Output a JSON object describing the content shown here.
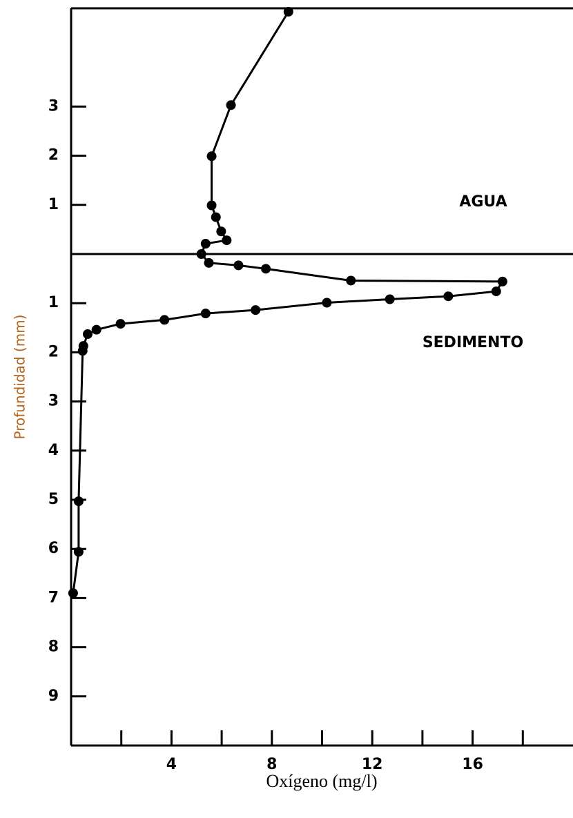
{
  "chart_data": {
    "type": "line",
    "x_label": "Oxígeno (mg/l)",
    "y_label": "Profundidad (mm)",
    "annotations": [
      "AGUA",
      "SEDIMENTO"
    ],
    "x": [
      8.66,
      6.37,
      5.6,
      5.6,
      5.77,
      5.98,
      6.2,
      5.36,
      5.19,
      5.49,
      6.67,
      7.76,
      11.15,
      17.19,
      16.94,
      15.03,
      12.7,
      10.19,
      7.35,
      5.36,
      3.72,
      1.97,
      1.01,
      0.66,
      0.49,
      0.46,
      0.3,
      0.3,
      0.08
    ],
    "values": [
      4.93,
      3.03,
      1.99,
      0.99,
      0.75,
      0.46,
      0.28,
      0.21,
      0.0,
      -0.18,
      -0.23,
      -0.3,
      -0.54,
      -0.56,
      -0.76,
      -0.86,
      -0.92,
      -0.99,
      -1.14,
      -1.21,
      -1.34,
      -1.42,
      -1.54,
      -1.63,
      -1.87,
      -1.97,
      -5.03,
      -6.06,
      -6.9
    ],
    "color": "#000000",
    "xlim": [
      0,
      20
    ],
    "xticks": [
      4,
      8,
      12,
      16
    ],
    "xminorticks": [
      2,
      6,
      10,
      14,
      18
    ],
    "ylim": [
      -10,
      5
    ],
    "yticks": [
      3,
      2,
      1,
      {
        "value": -1,
        "label": "1"
      },
      {
        "value": -2,
        "label": "2"
      },
      {
        "value": -3,
        "label": "3"
      },
      {
        "value": -4,
        "label": "4"
      },
      {
        "value": -5,
        "label": "5"
      },
      {
        "value": -6,
        "label": "6"
      },
      {
        "value": -7,
        "label": "7"
      },
      {
        "value": -8,
        "label": "8"
      },
      {
        "value": -9,
        "label": "9"
      }
    ],
    "interface": 0
  }
}
